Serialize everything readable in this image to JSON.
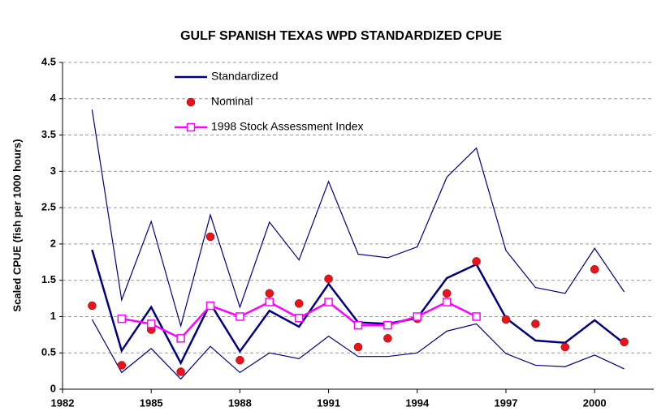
{
  "chart_data": {
    "type": "line",
    "title": "GULF SPANISH TEXAS WPD STANDARDIZED CPUE",
    "y_label": "Scaled CPUE (fish per 1000 hours)",
    "x": [
      1983,
      1984,
      1985,
      1986,
      1987,
      1988,
      1989,
      1990,
      1991,
      1992,
      1993,
      1994,
      1995,
      1996,
      1997,
      1998,
      1999,
      2000,
      2001
    ],
    "series": [
      {
        "name": "Standardized",
        "color": "#000080",
        "line": "thick",
        "marker": "none",
        "values": [
          1.92,
          0.53,
          1.13,
          0.36,
          1.18,
          0.52,
          1.08,
          0.86,
          1.45,
          0.92,
          0.9,
          0.98,
          1.53,
          1.72,
          0.98,
          0.67,
          0.64,
          0.95,
          0.63
        ]
      },
      {
        "color": "#000080",
        "line": "thin",
        "marker": "none",
        "values": [
          3.85,
          1.23,
          2.31,
          0.87,
          2.4,
          1.13,
          2.3,
          1.78,
          2.86,
          1.86,
          1.81,
          1.96,
          2.92,
          3.32,
          1.91,
          1.4,
          1.32,
          1.94,
          1.34
        ]
      },
      {
        "color": "#000080",
        "line": "thin",
        "marker": "none",
        "values": [
          0.96,
          0.23,
          0.56,
          0.14,
          0.59,
          0.23,
          0.5,
          0.42,
          0.73,
          0.45,
          0.45,
          0.5,
          0.8,
          0.9,
          0.49,
          0.33,
          0.31,
          0.47,
          0.28
        ]
      },
      {
        "name": "Nominal",
        "color": "#e8131b",
        "line": "none",
        "marker": "circle",
        "values": [
          1.15,
          0.33,
          0.82,
          0.24,
          2.1,
          0.4,
          1.32,
          1.18,
          1.52,
          0.58,
          0.7,
          0.97,
          1.32,
          1.76,
          0.96,
          0.9,
          0.58,
          1.65,
          0.65
        ]
      },
      {
        "name": "1998 Stock Assessment Index",
        "color": "#ff00ff",
        "line": "thick",
        "marker": "square",
        "values": [
          null,
          0.97,
          0.9,
          0.7,
          1.15,
          1.0,
          1.2,
          0.98,
          1.2,
          0.88,
          0.88,
          1.0,
          1.2,
          1.0,
          null,
          null,
          null,
          null,
          null
        ]
      }
    ],
    "xlim": [
      1982,
      2002
    ],
    "xticks": [
      1982,
      1985,
      1988,
      1991,
      1994,
      1997,
      2000
    ],
    "ylim": [
      0,
      4.5
    ],
    "yticks": [
      0,
      0.5,
      1,
      1.5,
      2,
      2.5,
      3,
      3.5,
      4,
      4.5
    ],
    "grid": true
  }
}
